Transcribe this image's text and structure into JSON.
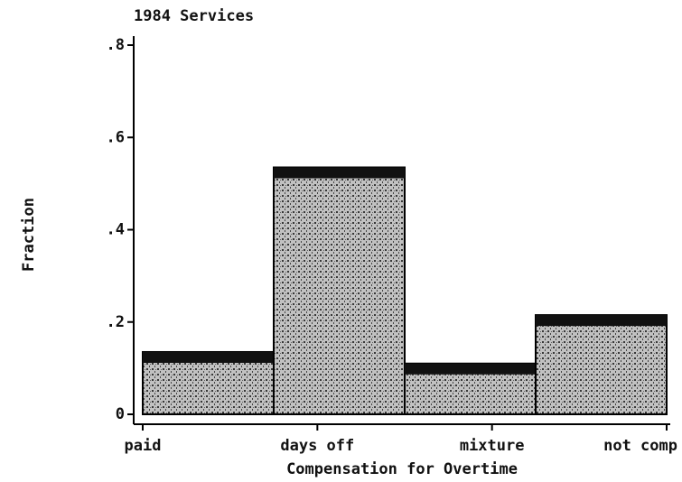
{
  "chart_data": {
    "type": "bar",
    "title": "1984 Services",
    "xlabel": "Compensation for Overtime",
    "ylabel": "Fraction",
    "categories": [
      "paid",
      "days off",
      "mixture",
      "not comp"
    ],
    "values": [
      0.135,
      0.535,
      0.11,
      0.215
    ],
    "color": "#8a8a8a",
    "ylim": [
      0,
      0.8
    ],
    "yticks": [
      0,
      {
        "value": 0.2,
        "label": ".2"
      },
      {
        "value": 0.4,
        "label": ".4"
      },
      {
        "value": 0.6,
        "label": ".6"
      },
      {
        "value": 0.8,
        "label": ".8"
      }
    ]
  }
}
